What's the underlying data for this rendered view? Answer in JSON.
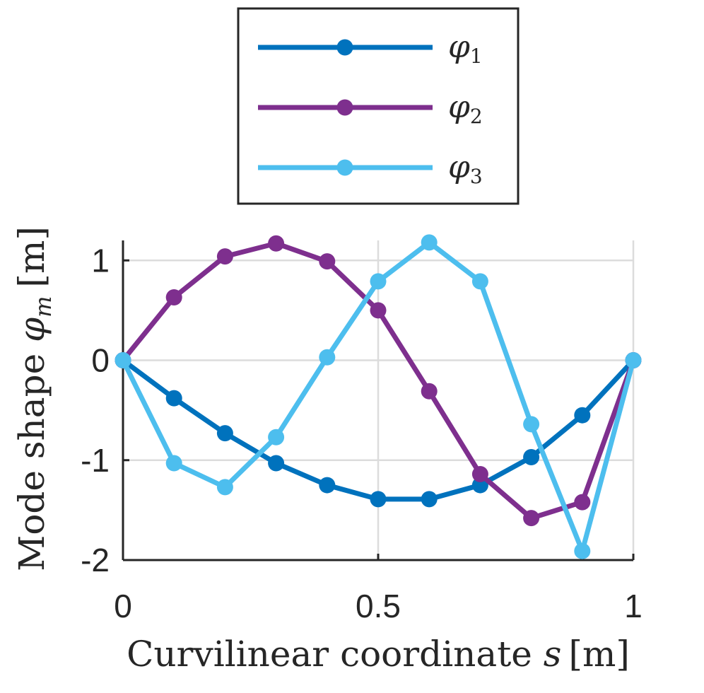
{
  "chart_data": {
    "type": "line",
    "title": "",
    "xlabel_text": "Curvilinear coordinate ",
    "xlabel_var": "s",
    "xlabel_unit": "[m]",
    "ylabel_text": "Mode shape ",
    "ylabel_var": "φ",
    "ylabel_sub": "m",
    "ylabel_unit": "[m]",
    "xlim": [
      0,
      1
    ],
    "ylim": [
      -2,
      1.2
    ],
    "xticks": [
      0,
      0.5,
      1
    ],
    "xtick_labels": [
      "0",
      "0.5",
      "1"
    ],
    "yticks": [
      -2,
      -1,
      0,
      1
    ],
    "ytick_labels": [
      "-2",
      "-1",
      "0",
      "1"
    ],
    "grid": true,
    "legend_position": "top-center",
    "x": [
      0,
      0.1,
      0.2,
      0.3,
      0.4,
      0.5,
      0.6,
      0.7,
      0.8,
      0.9,
      1.0
    ],
    "series": [
      {
        "name": "φ",
        "sub": "1",
        "color": "#0072BD",
        "values": [
          0,
          -0.38,
          -0.73,
          -1.03,
          -1.25,
          -1.39,
          -1.39,
          -1.25,
          -0.97,
          -0.55,
          0
        ]
      },
      {
        "name": "φ",
        "sub": "2",
        "color": "#7E2F8E",
        "values": [
          0,
          0.63,
          1.04,
          1.17,
          0.99,
          0.5,
          -0.31,
          -1.14,
          -1.58,
          -1.42,
          0
        ]
      },
      {
        "name": "φ",
        "sub": "3",
        "color": "#4DBEEE",
        "values": [
          0,
          -1.03,
          -1.27,
          -0.77,
          0.03,
          0.79,
          1.18,
          0.79,
          -0.64,
          -1.91,
          0
        ]
      }
    ]
  }
}
